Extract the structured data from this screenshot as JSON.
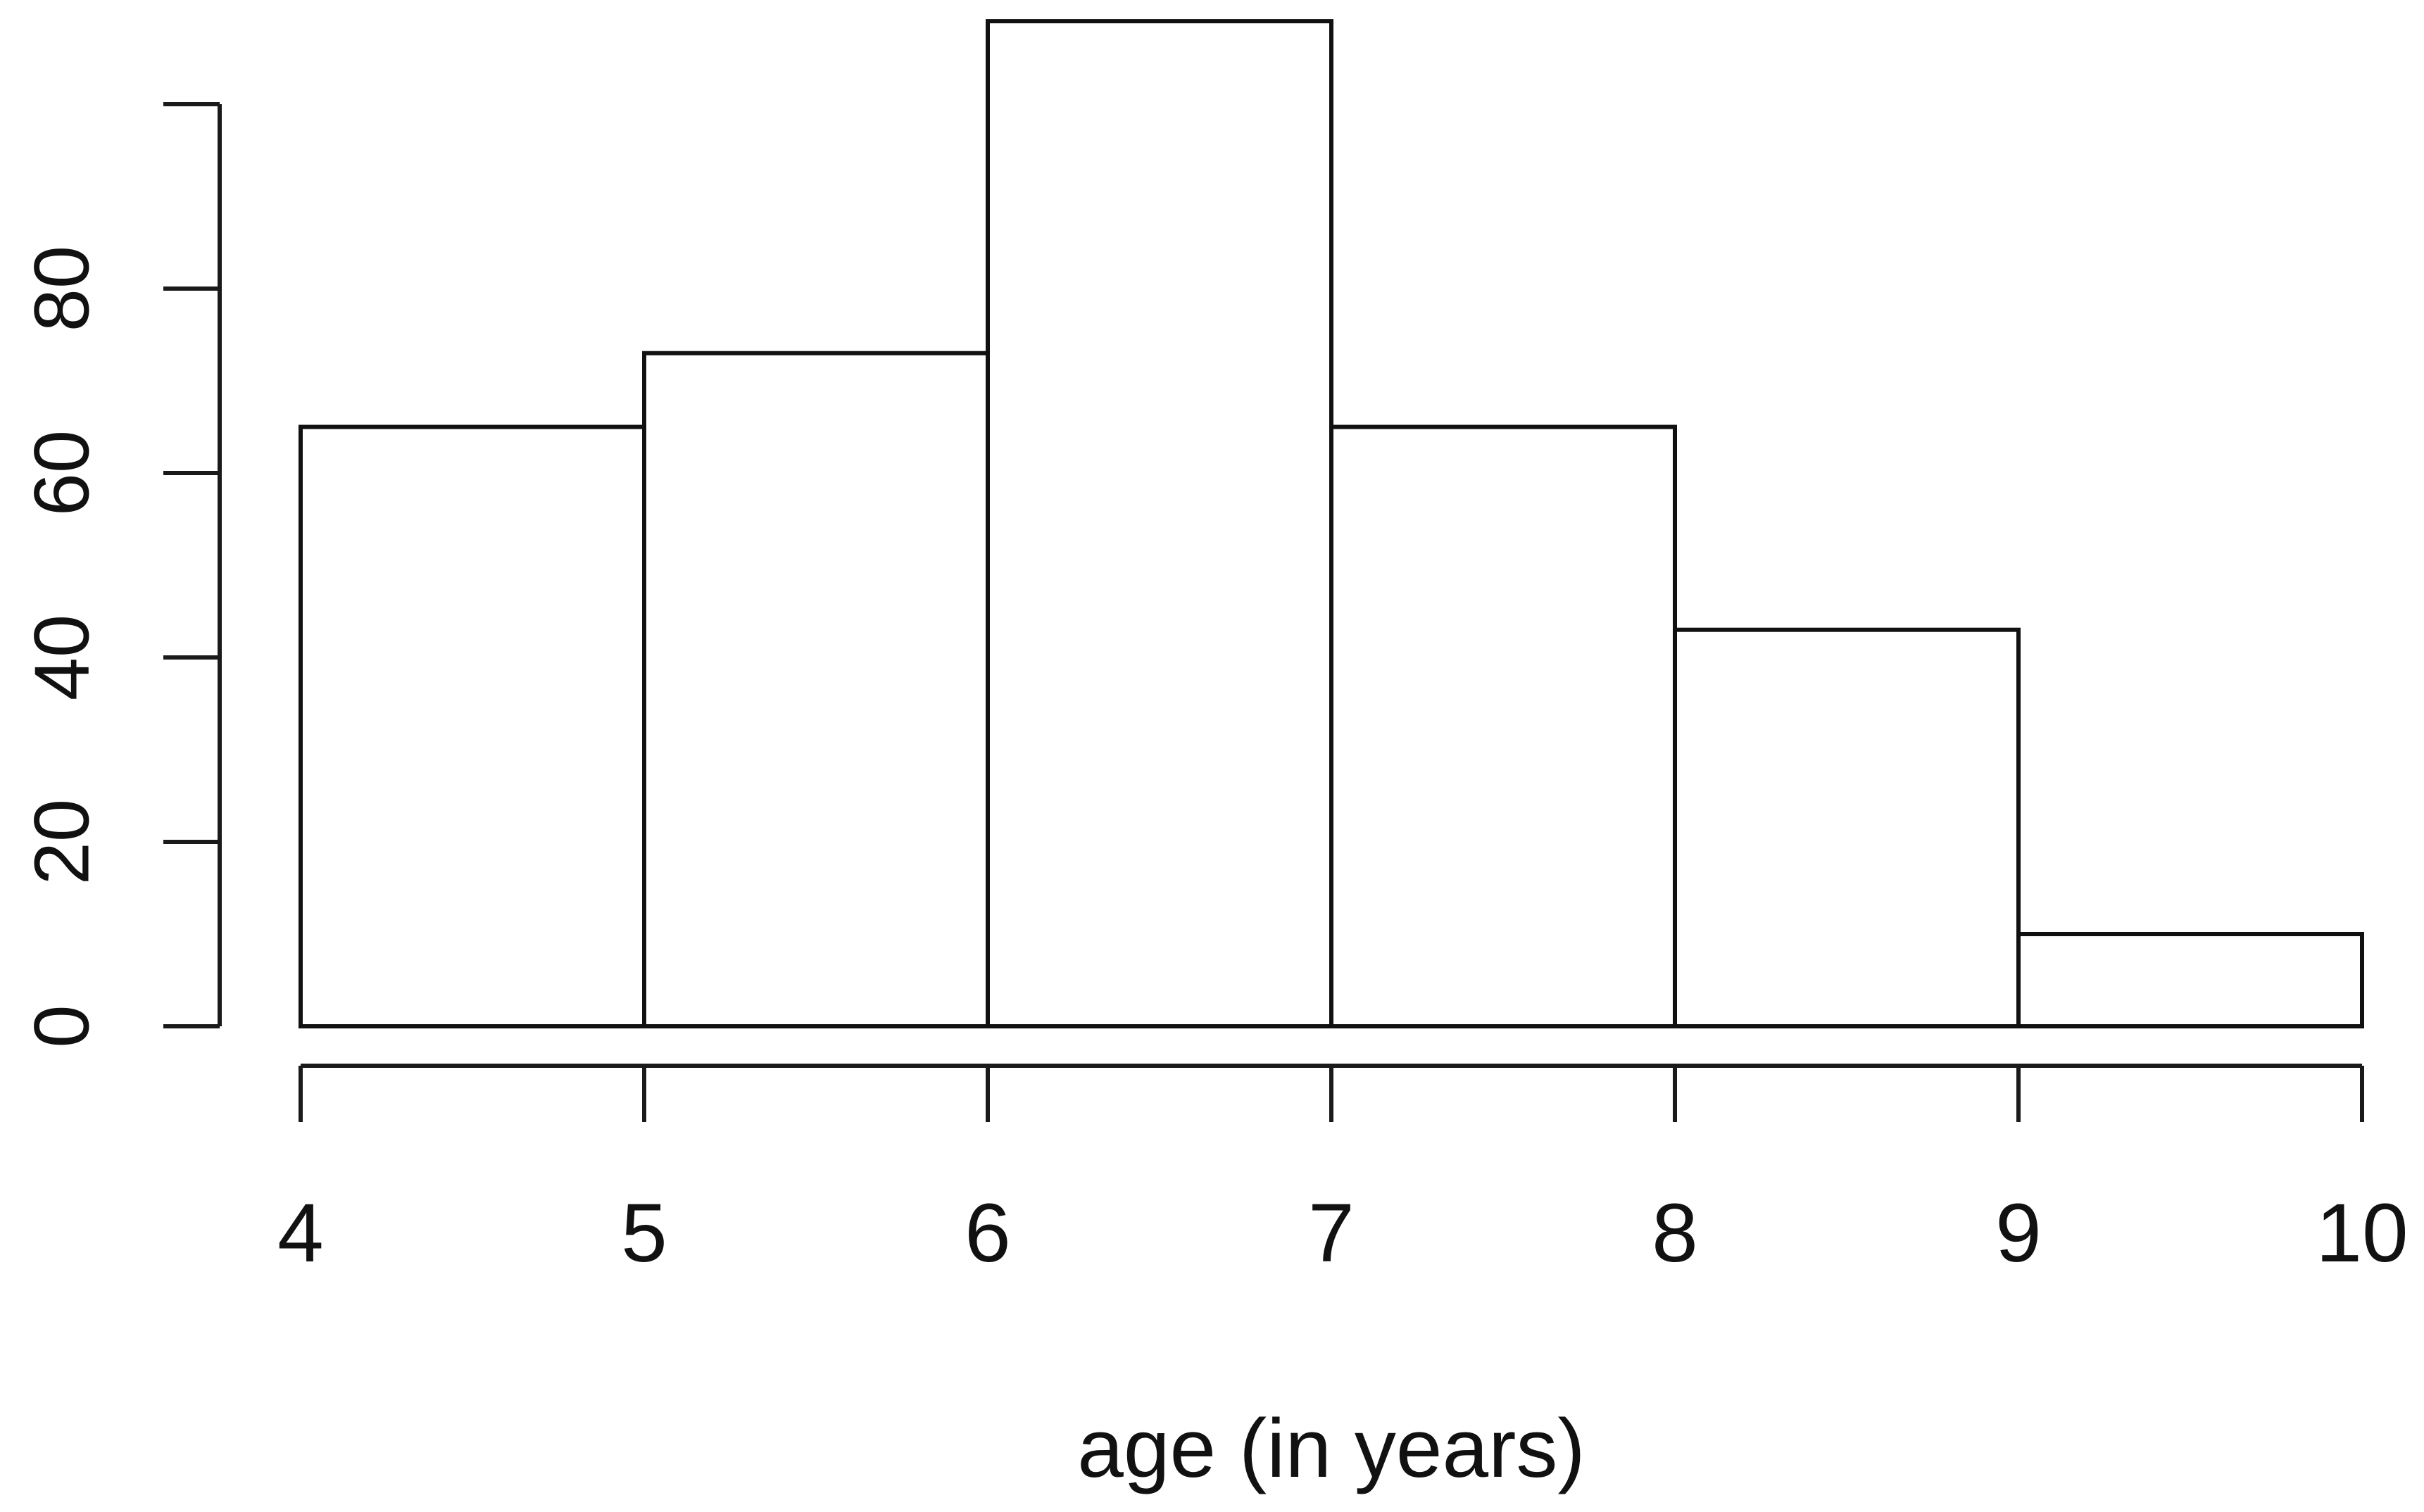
{
  "chart_data": {
    "type": "bar",
    "title": "",
    "xlabel": "age (in years)",
    "ylabel": "",
    "bins": [
      {
        "start": 4,
        "end": 5,
        "value": 65
      },
      {
        "start": 5,
        "end": 6,
        "value": 73
      },
      {
        "start": 6,
        "end": 7,
        "value": 109
      },
      {
        "start": 7,
        "end": 8,
        "value": 65
      },
      {
        "start": 8,
        "end": 9,
        "value": 43
      },
      {
        "start": 9,
        "end": 10,
        "value": 10
      }
    ],
    "xlim": [
      4,
      10
    ],
    "ylim": [
      0,
      100
    ],
    "x_ticks": [
      4,
      5,
      6,
      7,
      8,
      9,
      10
    ],
    "y_ticks": [
      0,
      20,
      40,
      60,
      80,
      100
    ],
    "y_tick_labels": [
      "0",
      "20",
      "40",
      "60",
      "80",
      ""
    ],
    "x_tick_labels": [
      "4",
      "5",
      "6",
      "7",
      "8",
      "9",
      "10"
    ],
    "grid": false,
    "legend": "none",
    "colors": {
      "bar_fill": "#ffffff",
      "bar_stroke": "#111111",
      "axis": "#1a1a1a"
    }
  }
}
